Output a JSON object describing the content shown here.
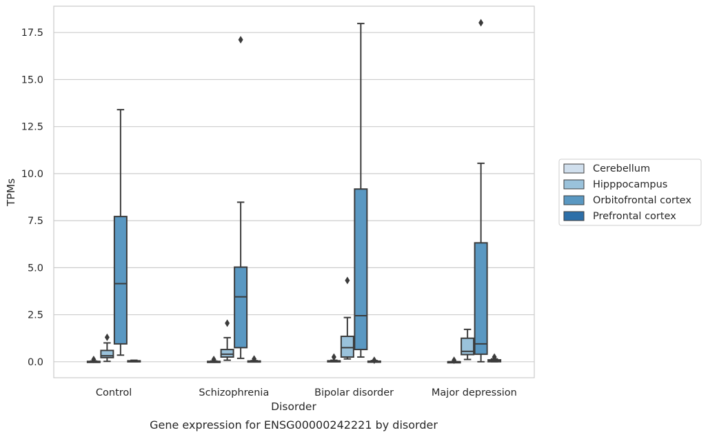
{
  "chart_data": {
    "type": "box",
    "title": "",
    "caption": "Gene expression for ENSG00000242221 by disorder",
    "xlabel": "Disorder",
    "ylabel": "TPMs",
    "categories": [
      "Control",
      "Schizophrenia",
      "Bipolar disorder",
      "Major depression"
    ],
    "yticks": [
      "0.0",
      "2.5",
      "5.0",
      "7.5",
      "10.0",
      "12.5",
      "15.0",
      "17.5"
    ],
    "ylim": [
      -0.85,
      18.9
    ],
    "grid": "horizontal",
    "legend_position": "right",
    "series": [
      {
        "name": "Cerebellum",
        "color": "#d0dfed",
        "boxes": [
          {
            "whislo": 0.0,
            "q1": 0.0,
            "med": 0.0,
            "q3": 0.02,
            "whishi": 0.04,
            "fliers": [
              0.12
            ]
          },
          {
            "whislo": 0.0,
            "q1": 0.0,
            "med": 0.0,
            "q3": 0.02,
            "whishi": 0.04,
            "fliers": [
              0.12
            ]
          },
          {
            "whislo": 0.0,
            "q1": 0.0,
            "med": 0.01,
            "q3": 0.05,
            "whishi": 0.08,
            "fliers": [
              0.25
            ]
          },
          {
            "whislo": 0.0,
            "q1": 0.0,
            "med": 0.0,
            "q3": 0.0,
            "whishi": 0.0,
            "fliers": [
              0.08
            ]
          }
        ]
      },
      {
        "name": "Hipppocampus",
        "color": "#9ac2db",
        "boxes": [
          {
            "whislo": 0.02,
            "q1": 0.22,
            "med": 0.32,
            "q3": 0.6,
            "whishi": 1.0,
            "fliers": [
              1.3
            ]
          },
          {
            "whislo": 0.08,
            "q1": 0.25,
            "med": 0.4,
            "q3": 0.65,
            "whishi": 1.28,
            "fliers": [
              2.05
            ]
          },
          {
            "whislo": 0.15,
            "q1": 0.25,
            "med": 0.75,
            "q3": 1.35,
            "whishi": 2.35,
            "fliers": [
              4.32
            ]
          },
          {
            "whislo": 0.12,
            "q1": 0.38,
            "med": 0.55,
            "q3": 1.25,
            "whishi": 1.72,
            "fliers": []
          }
        ]
      },
      {
        "name": "Orbitofrontal cortex",
        "color": "#5a98c2",
        "boxes": [
          {
            "whislo": 0.35,
            "q1": 0.95,
            "med": 4.15,
            "q3": 7.72,
            "whishi": 13.4,
            "fliers": []
          },
          {
            "whislo": 0.18,
            "q1": 0.75,
            "med": 3.45,
            "q3": 5.03,
            "whishi": 8.48,
            "fliers": [
              17.12
            ]
          },
          {
            "whislo": 0.25,
            "q1": 0.65,
            "med": 2.45,
            "q3": 9.18,
            "whishi": 17.98,
            "fliers": []
          },
          {
            "whislo": 0.0,
            "q1": 0.4,
            "med": 0.95,
            "q3": 6.32,
            "whishi": 10.55,
            "fliers": [
              18.02
            ]
          }
        ]
      },
      {
        "name": "Prefrontal cortex",
        "color": "#2d6fa8",
        "boxes": [
          {
            "whislo": 0.0,
            "q1": 0.0,
            "med": 0.02,
            "q3": 0.05,
            "whishi": 0.08,
            "fliers": []
          },
          {
            "whislo": 0.0,
            "q1": 0.0,
            "med": 0.01,
            "q3": 0.04,
            "whishi": 0.06,
            "fliers": [
              0.15
            ]
          },
          {
            "whislo": 0.0,
            "q1": 0.0,
            "med": 0.01,
            "q3": 0.03,
            "whishi": 0.06,
            "fliers": [
              0.08
            ]
          },
          {
            "whislo": 0.0,
            "q1": 0.0,
            "med": 0.05,
            "q3": 0.1,
            "whishi": 0.15,
            "fliers": [
              0.25
            ]
          }
        ]
      }
    ]
  }
}
